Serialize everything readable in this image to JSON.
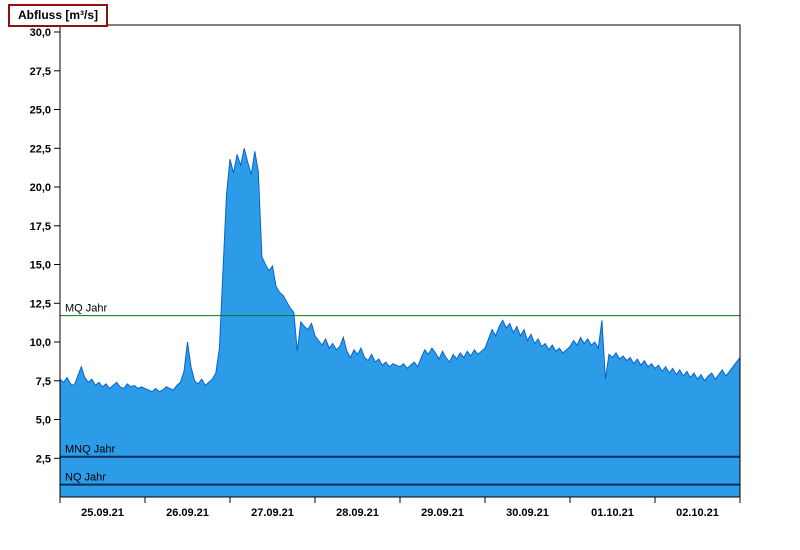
{
  "title": "Abfluss [m³/s]",
  "chart_data": {
    "type": "area",
    "title": "Abfluss [m³/s]",
    "ylabel": "Abfluss [m³/s]",
    "xlabel": "",
    "ylim": [
      0,
      30
    ],
    "grid": false,
    "legend": "none",
    "x_start": "25.09.21 00:00",
    "x_end": "03.10.21 00:00",
    "sampling_hours": 1,
    "y_tick_values": [
      2.5,
      5,
      7.5,
      10,
      12.5,
      15,
      17.5,
      20,
      22.5,
      25,
      27.5,
      30
    ],
    "y_tick_labels": [
      "2,5",
      "5,0",
      "7,5",
      "10,0",
      "12,5",
      "15,0",
      "17,5",
      "20,0",
      "22,5",
      "25,0",
      "27,5",
      "30,0"
    ],
    "x_tick_labels": [
      "25.09.21",
      "26.09.21",
      "27.09.21",
      "28.09.21",
      "29.09.21",
      "30.09.21",
      "01.10.21",
      "02.10.21"
    ],
    "series_name": "Abfluss",
    "values": [
      7.6,
      7.4,
      7.7,
      7.3,
      7.2,
      7.8,
      8.4,
      7.7,
      7.4,
      7.6,
      7.2,
      7.4,
      7.1,
      7.3,
      7.0,
      7.2,
      7.4,
      7.1,
      7.0,
      7.3,
      7.1,
      7.2,
      7.0,
      7.1,
      7.0,
      6.9,
      6.8,
      7.0,
      6.8,
      6.9,
      7.1,
      7.0,
      6.9,
      7.2,
      7.4,
      8.1,
      10.0,
      8.4,
      7.5,
      7.3,
      7.6,
      7.2,
      7.4,
      7.6,
      8.0,
      9.6,
      14.5,
      19.5,
      21.8,
      20.9,
      22.1,
      21.4,
      22.5,
      21.6,
      20.8,
      22.3,
      21.0,
      15.5,
      15.0,
      14.6,
      14.9,
      13.6,
      13.2,
      13.0,
      12.6,
      12.2,
      11.9,
      9.4,
      11.3,
      11.0,
      10.8,
      11.2,
      10.4,
      10.1,
      9.8,
      10.2,
      9.6,
      9.9,
      9.5,
      9.7,
      10.3,
      9.4,
      9.0,
      9.5,
      9.2,
      9.6,
      9.0,
      8.8,
      9.2,
      8.7,
      8.9,
      8.5,
      8.7,
      8.4,
      8.6,
      8.5,
      8.4,
      8.6,
      8.3,
      8.5,
      8.7,
      8.4,
      9.0,
      9.5,
      9.2,
      9.6,
      9.3,
      8.9,
      9.4,
      9.0,
      8.7,
      9.2,
      8.9,
      9.3,
      9.0,
      9.4,
      9.1,
      9.5,
      9.2,
      9.4,
      9.6,
      10.2,
      10.8,
      10.4,
      11.0,
      11.4,
      10.9,
      11.2,
      10.6,
      11.0,
      10.4,
      10.8,
      10.1,
      10.5,
      9.9,
      10.2,
      9.7,
      9.9,
      9.5,
      9.8,
      9.4,
      9.6,
      9.3,
      9.5,
      9.7,
      10.1,
      9.8,
      10.3,
      9.9,
      10.2,
      9.8,
      10.0,
      9.6,
      11.4,
      7.6,
      9.2,
      9.0,
      9.3,
      8.9,
      9.1,
      8.8,
      9.0,
      8.6,
      8.9,
      8.5,
      8.8,
      8.4,
      8.6,
      8.3,
      8.5,
      8.1,
      8.4,
      8.0,
      8.3,
      7.9,
      8.2,
      7.8,
      8.1,
      7.7,
      8.0,
      7.6,
      7.9,
      7.5,
      7.8,
      8.0,
      7.6,
      7.9,
      8.2,
      7.8,
      8.1,
      8.4,
      8.7,
      9.0
    ],
    "reference_lines": [
      {
        "label": "MQ Jahr",
        "value": 11.7,
        "color": "#007a1e",
        "width": 1
      },
      {
        "label": "MNQ Jahr",
        "value": 2.6,
        "color": "#0b2e59",
        "width": 2
      },
      {
        "label": "NQ Jahr",
        "value": 0.8,
        "color": "#0b2e59",
        "width": 2
      }
    ],
    "colors": {
      "fill": "#2c9be8",
      "stroke": "#0a63c9",
      "axis": "#000000",
      "background": "#ffffff"
    }
  }
}
